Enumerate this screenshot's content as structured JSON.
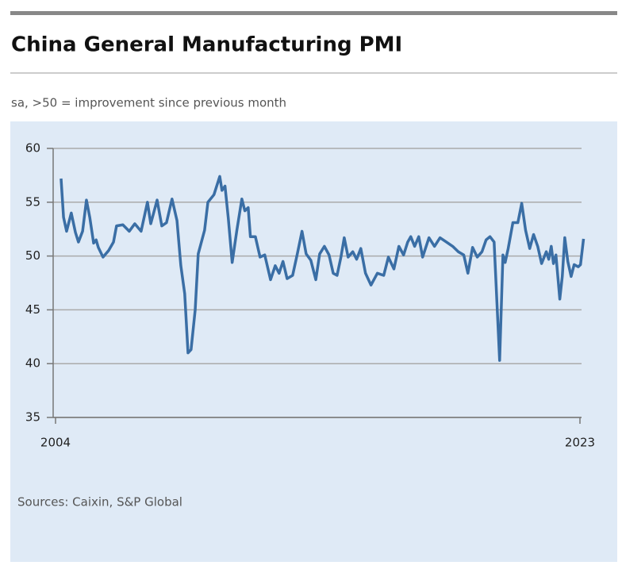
{
  "chart_data": {
    "type": "line",
    "title": "China General Manufacturing PMI",
    "subtitle": "sa, >50 = improvement since previous month",
    "source": "Sources: Caixin, S&P Global",
    "color": "#3a6ea5",
    "x": [
      2004.2,
      2004.29,
      2004.4,
      2004.57,
      2004.72,
      2004.83,
      2004.98,
      2005.12,
      2005.24,
      2005.38,
      2005.47,
      2005.55,
      2005.72,
      2005.92,
      2006.1,
      2006.21,
      2006.44,
      2006.67,
      2006.87,
      2007.1,
      2007.33,
      2007.45,
      2007.68,
      2007.85,
      2008.02,
      2008.22,
      2008.4,
      2008.54,
      2008.68,
      2008.8,
      2008.91,
      2009.06,
      2009.17,
      2009.4,
      2009.52,
      2009.74,
      2009.95,
      2010.03,
      2010.14,
      2010.26,
      2010.4,
      2010.57,
      2010.75,
      2010.86,
      2010.98,
      2011.06,
      2011.24,
      2011.41,
      2011.58,
      2011.79,
      2011.96,
      2012.1,
      2012.24,
      2012.39,
      2012.59,
      2012.76,
      2012.93,
      2013.08,
      2013.25,
      2013.43,
      2013.57,
      2013.74,
      2013.91,
      2014.06,
      2014.2,
      2014.34,
      2014.46,
      2014.6,
      2014.77,
      2014.91,
      2015.06,
      2015.23,
      2015.43,
      2015.66,
      2015.89,
      2016.06,
      2016.26,
      2016.44,
      2016.61,
      2016.76,
      2016.87,
      2017.01,
      2017.16,
      2017.3,
      2017.53,
      2017.73,
      2017.93,
      2018.16,
      2018.39,
      2018.59,
      2018.79,
      2018.94,
      2019.11,
      2019.28,
      2019.45,
      2019.6,
      2019.74,
      2019.89,
      2020.09,
      2020.21,
      2020.29,
      2020.4,
      2020.57,
      2020.75,
      2020.89,
      2021.03,
      2021.18,
      2021.32,
      2021.47,
      2021.61,
      2021.78,
      2021.87,
      2021.96,
      2022.04,
      2022.13,
      2022.27,
      2022.36,
      2022.45,
      2022.56,
      2022.68,
      2022.79,
      2022.94,
      2023.02,
      2023.13
    ],
    "values": [
      57.2,
      53.6,
      52.3,
      54,
      52.2,
      51.3,
      52.3,
      55.2,
      53.6,
      51.2,
      51.5,
      50.8,
      49.9,
      50.5,
      51.3,
      52.8,
      52.9,
      52.3,
      53,
      52.3,
      55,
      53,
      55.2,
      52.8,
      53.1,
      55.3,
      53.3,
      49.1,
      46.5,
      41,
      41.3,
      45,
      50.2,
      52.4,
      55,
      55.7,
      57.4,
      56.1,
      56.5,
      53.5,
      49.4,
      52.4,
      55.3,
      54.2,
      54.5,
      51.8,
      51.8,
      49.9,
      50.1,
      47.8,
      49.1,
      48.4,
      49.5,
      47.9,
      48.2,
      50.2,
      52.3,
      50.2,
      49.6,
      47.8,
      50.2,
      50.9,
      50.1,
      48.4,
      48.2,
      49.9,
      51.7,
      49.9,
      50.4,
      49.7,
      50.7,
      48.4,
      47.3,
      48.4,
      48.2,
      49.9,
      48.8,
      50.9,
      50.1,
      51.3,
      51.8,
      50.9,
      51.8,
      49.9,
      51.7,
      50.9,
      51.7,
      51.3,
      50.9,
      50.4,
      50.1,
      48.4,
      50.8,
      49.9,
      50.4,
      51.5,
      51.8,
      51.3,
      40.3,
      50.1,
      49.4,
      50.7,
      53.1,
      53.1,
      54.9,
      52.4,
      50.7,
      52,
      50.9,
      49.3,
      50.4,
      49.7,
      50.9,
      49.3,
      50.1,
      46,
      48.1,
      51.7,
      49.5,
      48.1,
      49.2,
      49,
      49.2,
      51.6
    ],
    "xlim": [
      2004,
      2023
    ],
    "xticks": [
      2004,
      2023
    ],
    "ylim": [
      35,
      60
    ],
    "yticks": [
      35,
      40,
      45,
      50,
      55,
      60
    ],
    "grid": true
  }
}
